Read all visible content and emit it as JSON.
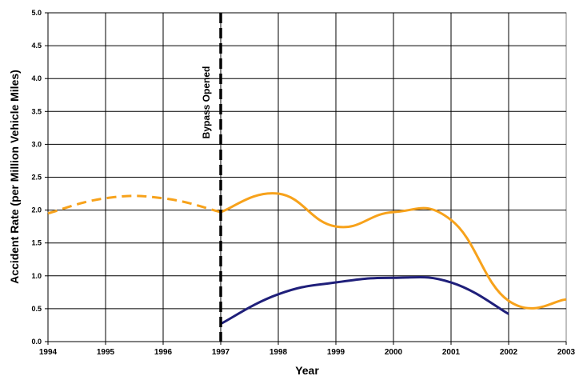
{
  "chart_data": {
    "type": "line",
    "title": "",
    "xlabel": "Year",
    "ylabel": "Accident Rate (per Million Vehicle Miles)",
    "xlim": [
      1994,
      2003
    ],
    "ylim": [
      0,
      5
    ],
    "x_ticks": [
      "1994",
      "1995",
      "1996",
      "1997",
      "1998",
      "1999",
      "2000",
      "2001",
      "2002",
      "2003"
    ],
    "y_ticks": [
      "0.0",
      "0.5",
      "1.0",
      "1.5",
      "2.0",
      "2.5",
      "3.0",
      "3.5",
      "4.0",
      "4.5",
      "5.0"
    ],
    "grid": true,
    "series": [
      {
        "color": "#F7A21B",
        "style": "dashed",
        "x": [
          1994,
          1995,
          1996,
          1997
        ],
        "y": [
          1.95,
          2.18,
          2.18,
          1.97
        ]
      },
      {
        "color": "#F7A21B",
        "style": "solid",
        "x": [
          1997,
          1998,
          1999,
          2000,
          2001,
          2002,
          2003
        ],
        "y": [
          1.97,
          2.25,
          1.75,
          1.97,
          1.85,
          0.62,
          0.64
        ]
      },
      {
        "color": "#1F1F7A",
        "style": "solid",
        "x": [
          1997,
          1998,
          1999,
          2000,
          2001,
          2002
        ],
        "y": [
          0.27,
          0.72,
          0.9,
          0.97,
          0.9,
          0.42
        ]
      }
    ],
    "annotations": [
      {
        "text": "Bypass Opened",
        "x": 1997,
        "line_style": "dashed",
        "color": "#000000"
      }
    ]
  }
}
